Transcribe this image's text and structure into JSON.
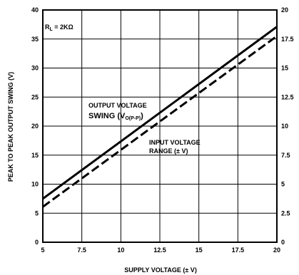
{
  "chart_data": {
    "type": "line",
    "xlabel": "SUPPLY VOLTAGE (± V)",
    "ylabel": "PEAK TO PEAK OUTPUT SWING (V)",
    "xlim": [
      5,
      20
    ],
    "ylim": [
      0,
      40
    ],
    "y2lim": [
      0,
      20
    ],
    "x_ticks": [
      "5",
      "7.5",
      "10",
      "12.5",
      "15",
      "17.5",
      "20"
    ],
    "y_ticks": [
      "0",
      "5",
      "10",
      "15",
      "20",
      "25",
      "30",
      "35",
      "40"
    ],
    "y2_ticks": [
      "0",
      "2.5",
      "5",
      "7.5",
      "10",
      "12.5",
      "15",
      "17.5",
      "20"
    ],
    "grid": true,
    "condition_label": {
      "main": "R",
      "sub": "L",
      "rest": " = 2KΩ"
    },
    "series": [
      {
        "axis": "left",
        "style": "solid",
        "label_line1": "OUTPUT VOLTAGE",
        "label_line2": "SWING (V",
        "label_sub": "O(P-P)",
        "label_close": ")",
        "x": [
          5,
          20
        ],
        "y": [
          7.5,
          37.1
        ]
      },
      {
        "axis": "right",
        "style": "dashed",
        "label_line1": "INPUT VOLTAGE",
        "label_line2": "RANGE (± V)",
        "x": [
          5,
          20
        ],
        "y": [
          3.05,
          17.75
        ]
      }
    ]
  }
}
